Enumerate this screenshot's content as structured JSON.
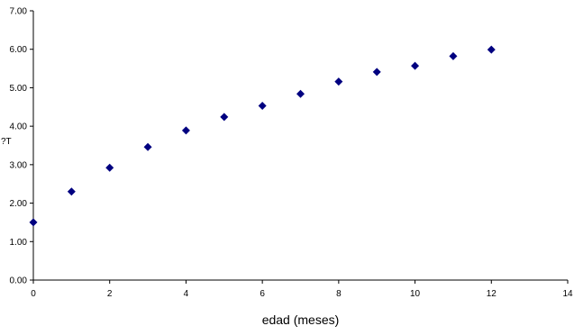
{
  "chart_data": {
    "type": "scatter",
    "title": "",
    "xlabel": "edad (meses)",
    "ylabel": "?T",
    "xlim": [
      0,
      14
    ],
    "ylim": [
      0,
      7
    ],
    "x_ticks": [
      {
        "value": 0,
        "label": "0"
      },
      {
        "value": 2,
        "label": "2"
      },
      {
        "value": 4,
        "label": "4"
      },
      {
        "value": 6,
        "label": "6"
      },
      {
        "value": 8,
        "label": "8"
      },
      {
        "value": 10,
        "label": "10"
      },
      {
        "value": 12,
        "label": "12"
      },
      {
        "value": 14,
        "label": "14"
      }
    ],
    "y_ticks": [
      {
        "value": 0,
        "label": "0.00"
      },
      {
        "value": 1,
        "label": "1.00"
      },
      {
        "value": 2,
        "label": "2.00"
      },
      {
        "value": 3,
        "label": "3.00"
      },
      {
        "value": 4,
        "label": "4.00"
      },
      {
        "value": 5,
        "label": "5.00"
      },
      {
        "value": 6,
        "label": "6.00"
      },
      {
        "value": 7,
        "label": "7.00"
      }
    ],
    "grid": false,
    "legend": "none",
    "marker": "diamond",
    "marker_color": "#000080",
    "series": [
      {
        "points": [
          {
            "x": 0,
            "y": 1.5
          },
          {
            "x": 1,
            "y": 2.3
          },
          {
            "x": 2,
            "y": 2.92
          },
          {
            "x": 3,
            "y": 3.46
          },
          {
            "x": 4,
            "y": 3.89
          },
          {
            "x": 5,
            "y": 4.24
          },
          {
            "x": 6,
            "y": 4.53
          },
          {
            "x": 7,
            "y": 4.84
          },
          {
            "x": 8,
            "y": 5.16
          },
          {
            "x": 9,
            "y": 5.41
          },
          {
            "x": 10,
            "y": 5.57
          },
          {
            "x": 11,
            "y": 5.82
          },
          {
            "x": 12,
            "y": 5.99
          }
        ]
      }
    ]
  }
}
